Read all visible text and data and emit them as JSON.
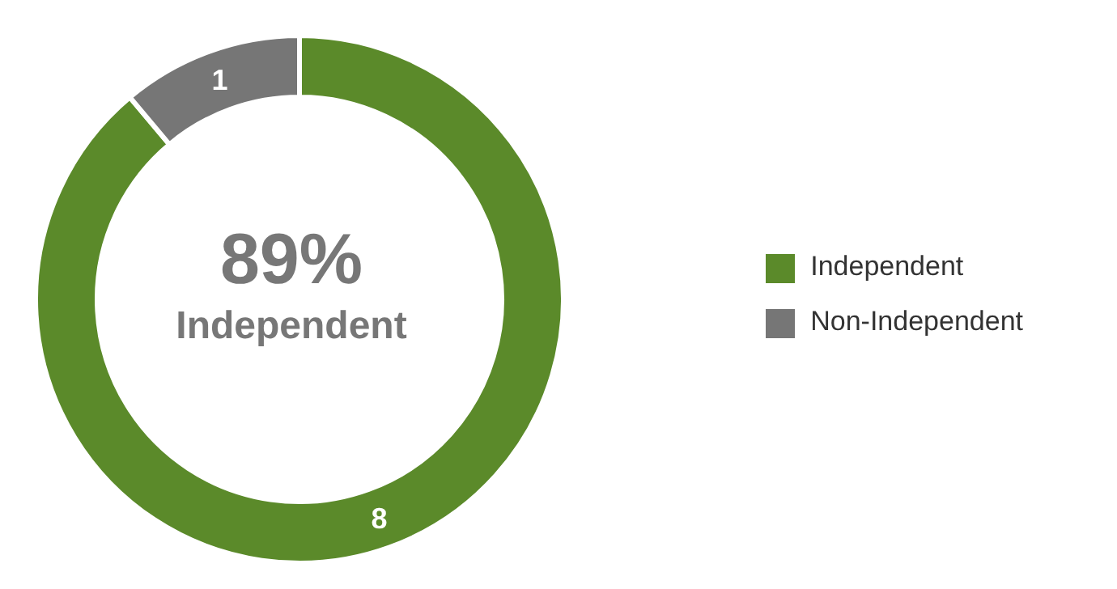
{
  "chart_data": {
    "type": "donut",
    "categories": [
      "Independent",
      "Non-Independent"
    ],
    "values": [
      8,
      1
    ],
    "colors": [
      "#5b8a2a",
      "#767676"
    ],
    "data_labels": true,
    "legend": "right",
    "annotations": [
      "89%",
      "Independent"
    ]
  }
}
